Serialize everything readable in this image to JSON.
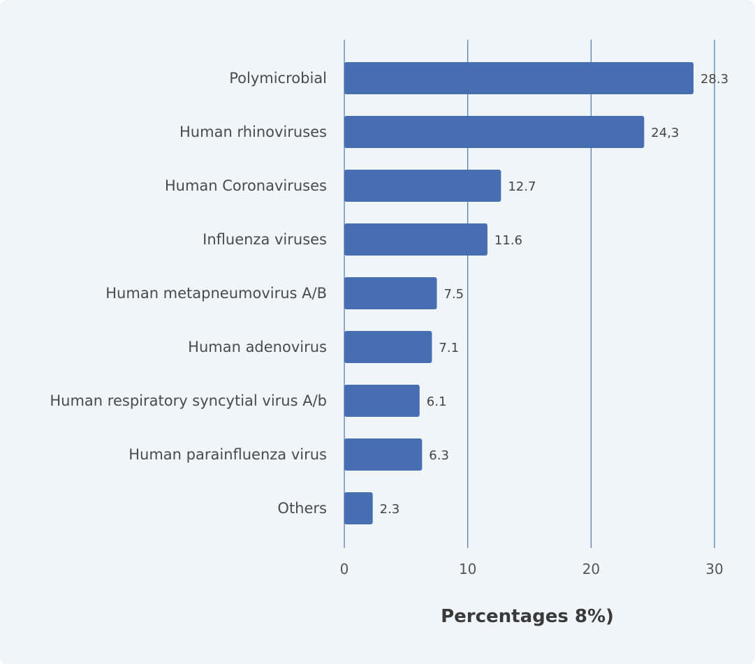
{
  "chart_data": {
    "type": "bar",
    "orientation": "horizontal",
    "title": "",
    "xlabel": "Percentages 8%)",
    "ylabel": "",
    "categories": [
      "Polymicrobial",
      "Human rhinoviruses",
      "Human Coronaviruses",
      "Influenza viruses",
      "Human metapneumovirus A/B",
      "Human adenovirus",
      "Human respiratory syncytial virus A/b",
      "Human parainfluenza virus",
      "Others"
    ],
    "values": [
      28.3,
      24.3,
      12.7,
      11.6,
      7.5,
      7.1,
      6.1,
      6.3,
      2.3
    ],
    "value_labels": [
      "28.3",
      "24,3",
      "12.7",
      "11.6",
      "7.5",
      "7.1",
      "6.1",
      "6.3",
      "2.3"
    ],
    "xlim": [
      0,
      30
    ],
    "xticks": [
      0,
      10,
      20,
      30
    ],
    "xtick_labels": [
      "0",
      "10",
      "20",
      "30"
    ],
    "grid": true,
    "legend": "none",
    "bar_color": "#466eb0",
    "grid_color": "#5a7fb5",
    "background_color": "#f0f5fa"
  }
}
